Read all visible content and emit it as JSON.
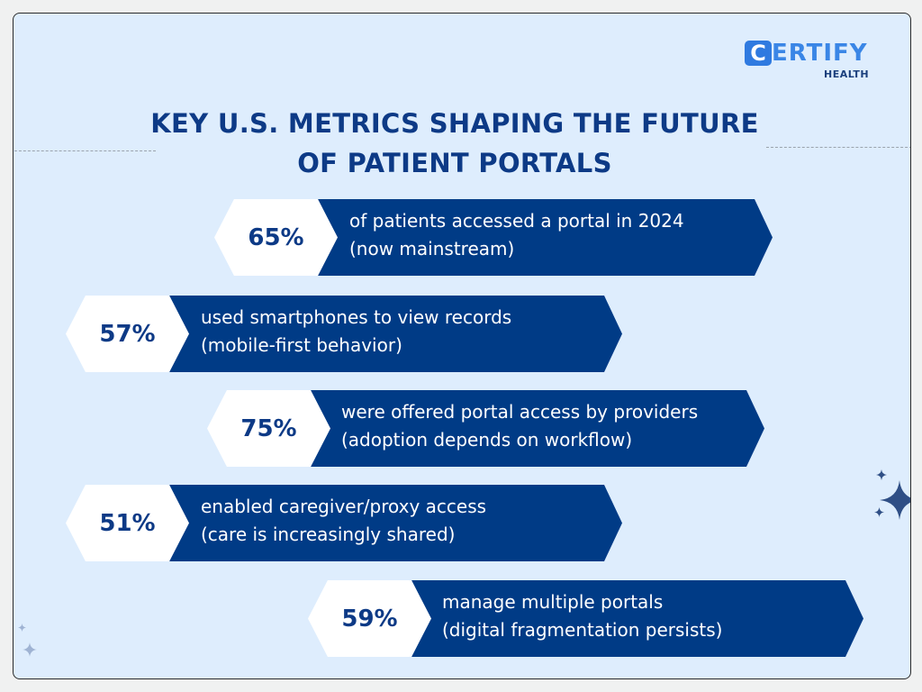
{
  "title_lines": [
    "KEY U.S. METRICS SHAPING THE FUTURE",
    "OF PATIENT PORTALS"
  ],
  "logo": {
    "letter": "C",
    "rest": "ERTIFY",
    "sub": "HEALTH"
  },
  "colors": {
    "bar": "#003b86",
    "title": "#0d3a86",
    "background": "#deedfd",
    "logo": "#3a86e6"
  },
  "metrics": [
    {
      "percent": "65%",
      "line1": "of patients accessed a portal in 2024",
      "line2": "(now mainstream)"
    },
    {
      "percent": "57%",
      "line1": "used smartphones to view records",
      "line2": "(mobile-first behavior)"
    },
    {
      "percent": "75%",
      "line1": "were offered portal access by providers",
      "line2": "(adoption depends on workflow)"
    },
    {
      "percent": "51%",
      "line1": "enabled caregiver/proxy access",
      "line2": "(care is increasingly shared)"
    },
    {
      "percent": "59%",
      "line1": "manage multiple portals",
      "line2": "(digital fragmentation persists)"
    }
  ]
}
